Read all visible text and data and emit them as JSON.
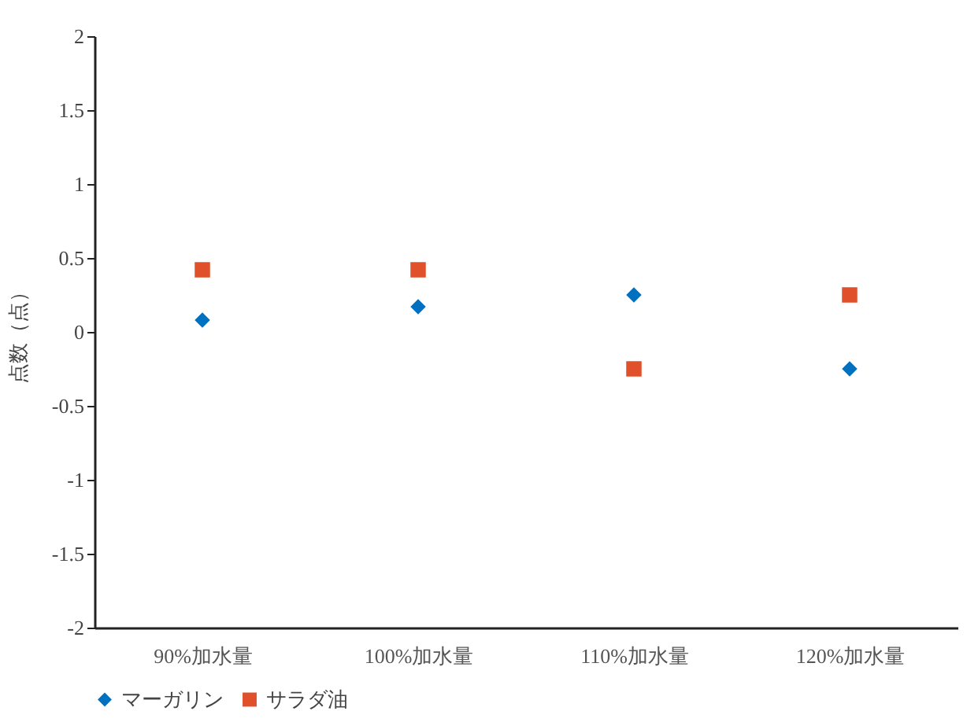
{
  "chart_data": {
    "type": "scatter",
    "ylabel": "点数（点）",
    "categories": [
      "90%加水量",
      "100%加水量",
      "110%加水量",
      "120%加水量"
    ],
    "series": [
      {
        "name": "マーガリン",
        "color": "#0070c0",
        "marker": "diamond",
        "values": [
          0.08,
          0.17,
          0.25,
          -0.25
        ]
      },
      {
        "name": "サラダ油",
        "color": "#e0502a",
        "marker": "square",
        "values": [
          0.42,
          0.42,
          -0.25,
          0.25
        ]
      }
    ],
    "ylim": [
      -2,
      2
    ],
    "yticks": [
      -2,
      -1.5,
      -1,
      -0.5,
      0,
      0.5,
      1,
      1.5,
      2
    ],
    "grid": false,
    "legend": "bottom"
  }
}
